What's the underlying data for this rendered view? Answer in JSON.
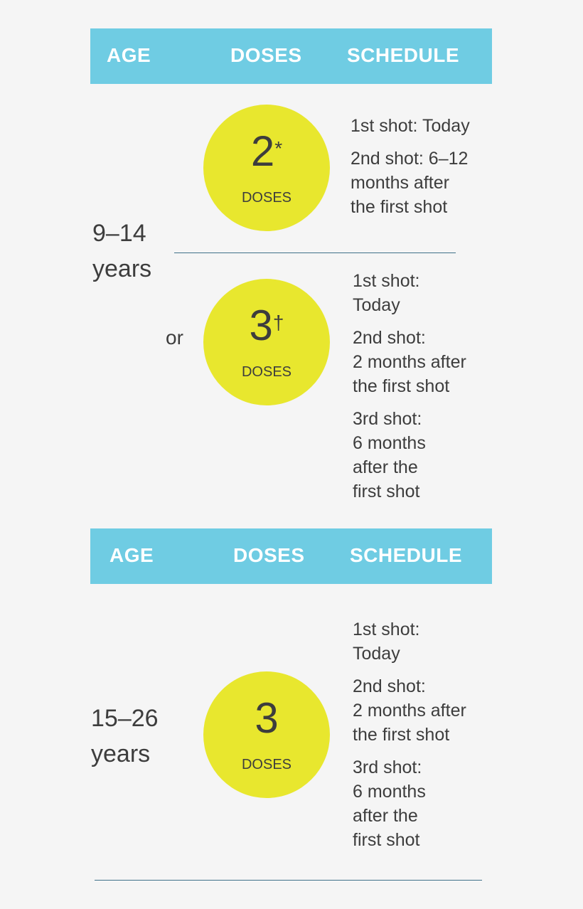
{
  "colors": {
    "header": "#6fcce3",
    "circle": "#e8e72e",
    "rule": "#3f7189"
  },
  "table1": {
    "headers": {
      "age": "AGE",
      "doses": "DOSES",
      "schedule": "SCHEDULE"
    },
    "age": "9–14\nyears",
    "option1": {
      "number": "2",
      "mark": "*",
      "label": "DOSES",
      "schedule": [
        "1st shot: Today",
        "2nd shot: 6–12\nmonths after\nthe first shot"
      ]
    },
    "or": "or",
    "option2": {
      "number": "3",
      "mark": "†",
      "label": "DOSES",
      "schedule": [
        "1st shot:\nToday",
        "2nd shot:\n2 months after\nthe first shot",
        "3rd shot:\n6 months\nafter the\nfirst shot"
      ]
    }
  },
  "table2": {
    "headers": {
      "age": "AGE",
      "doses": "DOSES",
      "schedule": "SCHEDULE"
    },
    "age": "15–26\nyears",
    "option1": {
      "number": "3",
      "label": "DOSES",
      "schedule": [
        "1st shot:\nToday",
        "2nd shot:\n2 months after\nthe first shot",
        "3rd shot:\n6 months\nafter the\nfirst shot"
      ]
    }
  }
}
